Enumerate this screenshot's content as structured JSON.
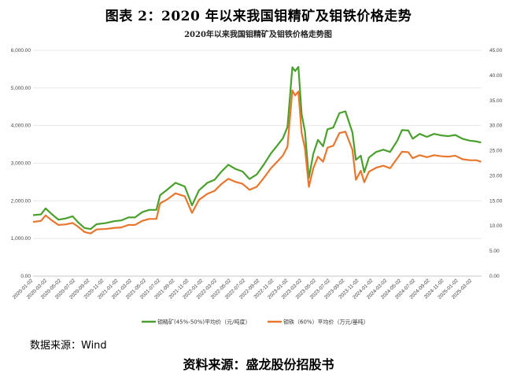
{
  "figure_title": "图表 2：2020 年以来我国钼精矿及钼铁价格走势",
  "source_small": "数据来源：Wind",
  "source_big": "资料来源：盛龙股份招股书",
  "colors": {
    "molybdenum_concentrate": "#4aa02c",
    "ferromolybdenum": "#e8762d",
    "grid": "#e3e3e3"
  },
  "chart_data": {
    "type": "line",
    "title": "2020年以来我国钼精矿及钼铁价格走势图",
    "grid": true,
    "legend_position": "bottom",
    "x_tick_labels": [
      "2020-01-02",
      "2020-03-02",
      "2020-05-02",
      "2020-07-02",
      "2020-09-02",
      "2020-11-02",
      "2021-01-02",
      "2021-03-02",
      "2021-05-02",
      "2021-07-02",
      "2021-09-02",
      "2021-11-02",
      "2022-01-02",
      "2022-03-02",
      "2022-05-02",
      "2022-07-02",
      "2022-09-02",
      "2022-11-02",
      "2023-01-02",
      "2023-03-02",
      "2023-05-02",
      "2023-07-02",
      "2023-09-02",
      "2023-11-02",
      "2024-01-02",
      "2024-03-02",
      "2024-05-02",
      "2024-07-02",
      "2024-09-02",
      "2024-11-02",
      "2025-01-02",
      "2025-03-02"
    ],
    "y_left": {
      "ylim": [
        0,
        6000
      ],
      "ticks": [
        "0.00",
        "1,000.00",
        "2,000.00",
        "3,000.00",
        "4,000.00",
        "5,000.00",
        "6,000.00"
      ]
    },
    "y_right": {
      "ylim": [
        0,
        45
      ],
      "ticks": [
        "0.00",
        "5.00",
        "10.00",
        "15.00",
        "20.00",
        "25.00",
        "30.00",
        "35.00",
        "40.00",
        "45.00"
      ]
    },
    "series": [
      {
        "name": "钼精矿(45%-50%)平均价（元/吨度）",
        "axis": "left",
        "color_key": "molybdenum_concentrate",
        "points": [
          [
            "2020-01-02",
            1620
          ],
          [
            "2020-02-05",
            1640
          ],
          [
            "2020-02-25",
            1800
          ],
          [
            "2020-03-20",
            1660
          ],
          [
            "2020-04-20",
            1500
          ],
          [
            "2020-05-20",
            1530
          ],
          [
            "2020-06-20",
            1590
          ],
          [
            "2020-07-15",
            1420
          ],
          [
            "2020-08-10",
            1280
          ],
          [
            "2020-09-05",
            1250
          ],
          [
            "2020-10-01",
            1380
          ],
          [
            "2020-11-10",
            1410
          ],
          [
            "2020-12-15",
            1460
          ],
          [
            "2021-01-15",
            1480
          ],
          [
            "2021-02-15",
            1560
          ],
          [
            "2021-03-15",
            1560
          ],
          [
            "2021-04-15",
            1700
          ],
          [
            "2021-05-15",
            1760
          ],
          [
            "2021-06-15",
            1760
          ],
          [
            "2021-07-01",
            2150
          ],
          [
            "2021-08-01",
            2300
          ],
          [
            "2021-09-05",
            2480
          ],
          [
            "2021-10-15",
            2380
          ],
          [
            "2021-11-15",
            1880
          ],
          [
            "2021-12-15",
            2280
          ],
          [
            "2022-01-20",
            2480
          ],
          [
            "2022-02-20",
            2560
          ],
          [
            "2022-03-20",
            2770
          ],
          [
            "2022-04-20",
            2960
          ],
          [
            "2022-05-20",
            2850
          ],
          [
            "2022-06-20",
            2780
          ],
          [
            "2022-07-20",
            2580
          ],
          [
            "2022-08-20",
            2700
          ],
          [
            "2022-09-20",
            2970
          ],
          [
            "2022-10-20",
            3260
          ],
          [
            "2022-11-20",
            3500
          ],
          [
            "2022-12-10",
            3660
          ],
          [
            "2022-12-30",
            3960
          ],
          [
            "2023-01-20",
            5550
          ],
          [
            "2023-02-01",
            5450
          ],
          [
            "2023-02-15",
            5560
          ],
          [
            "2023-03-01",
            4300
          ],
          [
            "2023-03-15",
            3850
          ],
          [
            "2023-04-01",
            2610
          ],
          [
            "2023-04-20",
            3250
          ],
          [
            "2023-05-10",
            3620
          ],
          [
            "2023-06-01",
            3450
          ],
          [
            "2023-06-20",
            3900
          ],
          [
            "2023-07-15",
            3950
          ],
          [
            "2023-08-10",
            4330
          ],
          [
            "2023-09-05",
            4380
          ],
          [
            "2023-10-05",
            3820
          ],
          [
            "2023-10-20",
            3090
          ],
          [
            "2023-11-10",
            3200
          ],
          [
            "2023-11-25",
            2760
          ],
          [
            "2023-12-15",
            3150
          ],
          [
            "2024-01-15",
            3300
          ],
          [
            "2024-02-15",
            3360
          ],
          [
            "2024-03-15",
            3300
          ],
          [
            "2024-04-15",
            3600
          ],
          [
            "2024-05-05",
            3880
          ],
          [
            "2024-06-01",
            3870
          ],
          [
            "2024-06-20",
            3650
          ],
          [
            "2024-07-20",
            3780
          ],
          [
            "2024-08-20",
            3700
          ],
          [
            "2024-09-20",
            3780
          ],
          [
            "2024-10-20",
            3740
          ],
          [
            "2024-11-20",
            3720
          ],
          [
            "2024-12-20",
            3750
          ],
          [
            "2025-01-20",
            3650
          ],
          [
            "2025-02-20",
            3600
          ],
          [
            "2025-03-20",
            3580
          ],
          [
            "2025-04-10",
            3550
          ]
        ]
      },
      {
        "name": "钼铁（60%）平均价（万元/基吨）",
        "axis": "right",
        "color_key": "ferromolybdenum",
        "points": [
          [
            "2020-01-02",
            10.8
          ],
          [
            "2020-02-05",
            11.0
          ],
          [
            "2020-02-25",
            12.1
          ],
          [
            "2020-03-20",
            11.2
          ],
          [
            "2020-04-20",
            10.2
          ],
          [
            "2020-05-20",
            10.3
          ],
          [
            "2020-06-20",
            10.6
          ],
          [
            "2020-07-15",
            9.8
          ],
          [
            "2020-08-10",
            8.8
          ],
          [
            "2020-09-05",
            8.5
          ],
          [
            "2020-10-01",
            9.3
          ],
          [
            "2020-11-10",
            9.4
          ],
          [
            "2020-12-15",
            9.6
          ],
          [
            "2021-01-15",
            9.7
          ],
          [
            "2021-02-15",
            10.2
          ],
          [
            "2021-03-15",
            10.2
          ],
          [
            "2021-04-15",
            11.0
          ],
          [
            "2021-05-15",
            11.4
          ],
          [
            "2021-06-15",
            11.4
          ],
          [
            "2021-07-01",
            14.5
          ],
          [
            "2021-08-01",
            15.3
          ],
          [
            "2021-09-05",
            16.5
          ],
          [
            "2021-10-15",
            15.9
          ],
          [
            "2021-11-15",
            12.6
          ],
          [
            "2021-12-15",
            15.2
          ],
          [
            "2022-01-20",
            16.4
          ],
          [
            "2022-02-20",
            17.0
          ],
          [
            "2022-03-20",
            18.3
          ],
          [
            "2022-04-20",
            19.4
          ],
          [
            "2022-05-20",
            18.8
          ],
          [
            "2022-06-20",
            18.4
          ],
          [
            "2022-07-20",
            17.2
          ],
          [
            "2022-08-20",
            17.8
          ],
          [
            "2022-09-20",
            19.6
          ],
          [
            "2022-10-20",
            21.5
          ],
          [
            "2022-11-20",
            23.0
          ],
          [
            "2022-12-10",
            24.0
          ],
          [
            "2022-12-30",
            25.8
          ],
          [
            "2023-01-20",
            37.0
          ],
          [
            "2023-02-01",
            36.0
          ],
          [
            "2023-02-15",
            36.8
          ],
          [
            "2023-03-01",
            28.5
          ],
          [
            "2023-03-15",
            25.5
          ],
          [
            "2023-04-01",
            17.8
          ],
          [
            "2023-04-20",
            21.5
          ],
          [
            "2023-05-10",
            23.8
          ],
          [
            "2023-06-01",
            22.8
          ],
          [
            "2023-06-20",
            25.6
          ],
          [
            "2023-07-15",
            26.0
          ],
          [
            "2023-08-10",
            28.5
          ],
          [
            "2023-09-05",
            28.8
          ],
          [
            "2023-10-05",
            25.2
          ],
          [
            "2023-10-20",
            19.2
          ],
          [
            "2023-11-10",
            21.0
          ],
          [
            "2023-11-25",
            18.7
          ],
          [
            "2023-12-15",
            20.8
          ],
          [
            "2024-01-15",
            21.6
          ],
          [
            "2024-02-15",
            22.0
          ],
          [
            "2024-03-15",
            21.5
          ],
          [
            "2024-04-15",
            23.5
          ],
          [
            "2024-05-05",
            24.8
          ],
          [
            "2024-06-01",
            24.7
          ],
          [
            "2024-06-20",
            23.5
          ],
          [
            "2024-07-20",
            24.1
          ],
          [
            "2024-08-20",
            23.7
          ],
          [
            "2024-09-20",
            24.1
          ],
          [
            "2024-10-20",
            23.9
          ],
          [
            "2024-11-20",
            23.8
          ],
          [
            "2024-12-20",
            24.0
          ],
          [
            "2025-01-20",
            23.3
          ],
          [
            "2025-02-20",
            23.1
          ],
          [
            "2025-03-20",
            23.1
          ],
          [
            "2025-04-10",
            22.8
          ]
        ]
      }
    ]
  }
}
